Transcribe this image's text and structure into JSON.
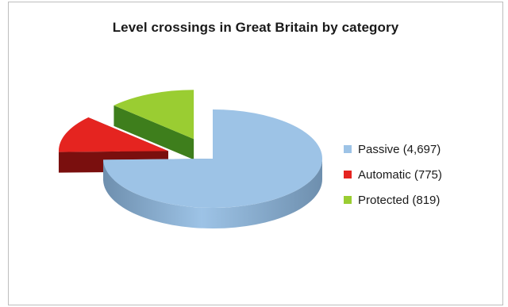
{
  "chart_data": {
    "type": "pie",
    "title": "Level crossings in Great Britain by category",
    "slices": [
      {
        "label": "Passive",
        "value": 4697,
        "legend": "Passive (4,697)",
        "color": "#9DC3E6",
        "side_color": "#6E8FAE",
        "exploded": false
      },
      {
        "label": "Automatic",
        "value": 775,
        "legend": "Automatic (775)",
        "color": "#E52420",
        "side_color": "#7A0F0E",
        "exploded": true
      },
      {
        "label": "Protected",
        "value": 819,
        "legend": "Protected (819)",
        "color": "#9ACD32",
        "side_color": "#3E7E1C",
        "exploded": true
      }
    ],
    "legend_position": "right",
    "three_d": true
  }
}
